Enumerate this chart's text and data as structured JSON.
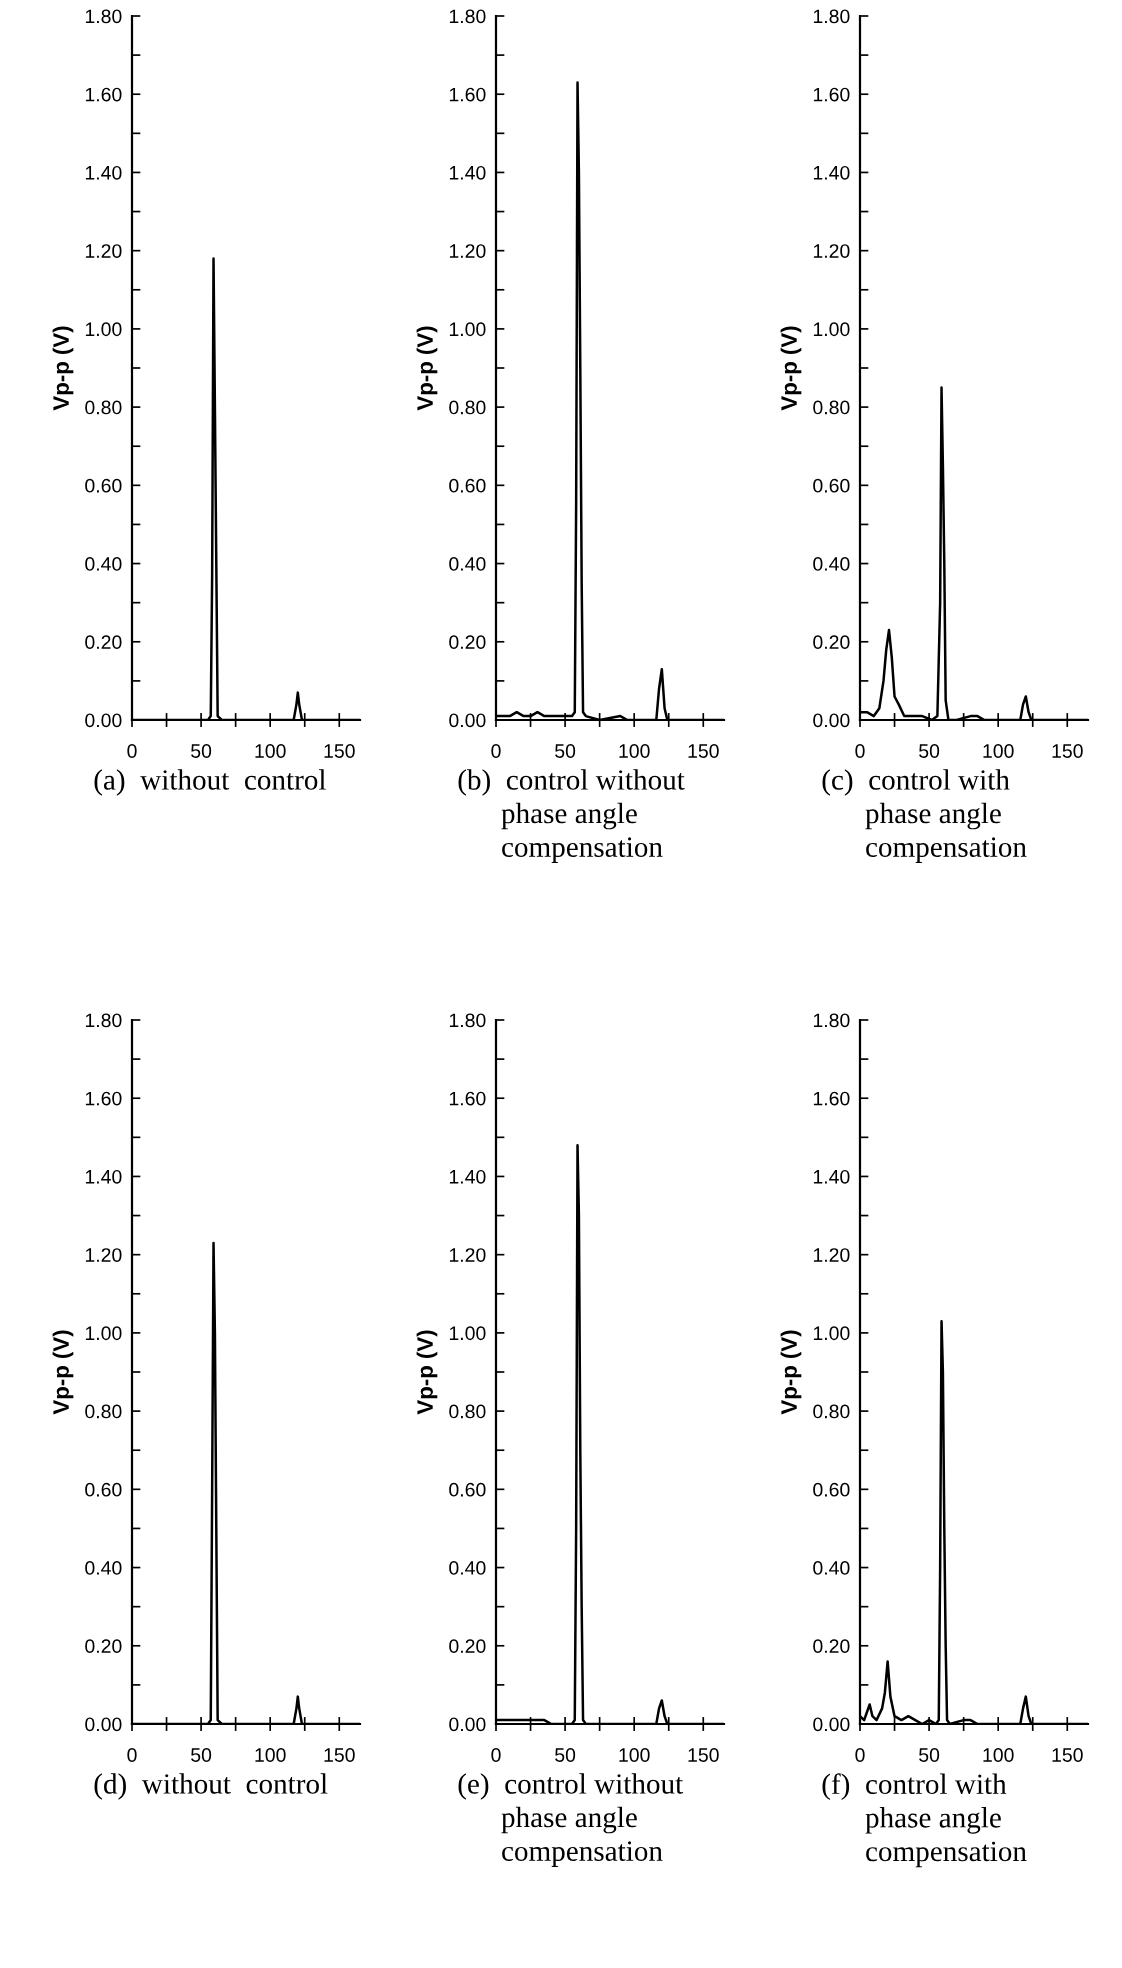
{
  "chart_data": [
    {
      "type": "line",
      "xlabel": "(a)  without  control",
      "ylabel": "Vp-p (V)",
      "xlim": [
        0,
        165
      ],
      "ylim": [
        0,
        1.8
      ],
      "xticks": [
        0,
        {
          "value": 25,
          "label": null
        },
        50,
        {
          "value": 75,
          "label": null
        },
        100,
        {
          "value": 125,
          "label": null
        },
        150
      ],
      "yticks": [
        {
          "value": 0,
          "label": "0.00"
        },
        {
          "value": 0.1,
          "label": null
        },
        {
          "value": 0.2,
          "label": "0.20"
        },
        {
          "value": 0.3,
          "label": null
        },
        {
          "value": 0.4,
          "label": "0.40"
        },
        {
          "value": 0.5,
          "label": null
        },
        {
          "value": 0.6,
          "label": "0.60"
        },
        {
          "value": 0.7,
          "label": null
        },
        {
          "value": 0.8,
          "label": "0.80"
        },
        {
          "value": 0.9,
          "label": null
        },
        {
          "value": 1.0,
          "label": "1.00"
        },
        {
          "value": 1.1,
          "label": null
        },
        {
          "value": 1.2,
          "label": "1.20"
        },
        {
          "value": 1.3,
          "label": null
        },
        {
          "value": 1.4,
          "label": "1.40"
        },
        {
          "value": 1.5,
          "label": null
        },
        {
          "value": 1.6,
          "label": "1.60"
        },
        {
          "value": 1.7,
          "label": null
        },
        {
          "value": 1.8,
          "label": "1.80"
        }
      ],
      "grid": false,
      "legend": false,
      "series": [
        {
          "color": "#000000",
          "x": [
            0,
            55,
            57,
            58,
            59,
            60,
            61,
            62,
            65,
            117,
            119,
            120,
            121,
            123,
            165
          ],
          "values": [
            0,
            0,
            0.01,
            0.37,
            1.18,
            0.8,
            0.4,
            0.01,
            0,
            0,
            0.04,
            0.07,
            0.04,
            0,
            0
          ]
        }
      ]
    },
    {
      "type": "line",
      "xlabel": "(b)  control without\n      phase angle\n      compensation",
      "ylabel": "Vp-p (V)",
      "xlim": [
        0,
        165
      ],
      "ylim": [
        0,
        1.8
      ],
      "xticks": [
        0,
        {
          "value": 25,
          "label": null
        },
        50,
        {
          "value": 75,
          "label": null
        },
        100,
        {
          "value": 125,
          "label": null
        },
        150
      ],
      "yticks": [
        {
          "value": 0,
          "label": "0.00"
        },
        {
          "value": 0.1,
          "label": null
        },
        {
          "value": 0.2,
          "label": "0.20"
        },
        {
          "value": 0.3,
          "label": null
        },
        {
          "value": 0.4,
          "label": "0.40"
        },
        {
          "value": 0.5,
          "label": null
        },
        {
          "value": 0.6,
          "label": "0.60"
        },
        {
          "value": 0.7,
          "label": null
        },
        {
          "value": 0.8,
          "label": "0.80"
        },
        {
          "value": 0.9,
          "label": null
        },
        {
          "value": 1.0,
          "label": "1.00"
        },
        {
          "value": 1.1,
          "label": null
        },
        {
          "value": 1.2,
          "label": "1.20"
        },
        {
          "value": 1.3,
          "label": null
        },
        {
          "value": 1.4,
          "label": "1.40"
        },
        {
          "value": 1.5,
          "label": null
        },
        {
          "value": 1.6,
          "label": "1.60"
        },
        {
          "value": 1.7,
          "label": null
        },
        {
          "value": 1.8,
          "label": "1.80"
        }
      ],
      "grid": false,
      "legend": false,
      "series": [
        {
          "color": "#000000",
          "x": [
            0,
            5,
            10,
            15,
            20,
            25,
            30,
            35,
            40,
            45,
            50,
            55,
            57,
            58,
            59,
            60,
            61,
            62,
            63,
            65,
            75,
            90,
            95,
            100,
            116,
            118,
            120,
            122,
            124,
            165
          ],
          "values": [
            0.01,
            0.01,
            0.01,
            0.02,
            0.01,
            0.01,
            0.02,
            0.01,
            0.01,
            0.01,
            0.01,
            0.01,
            0.02,
            0.55,
            1.63,
            1.4,
            0.9,
            0.35,
            0.02,
            0.01,
            0,
            0.01,
            0,
            0,
            0,
            0.08,
            0.13,
            0.03,
            0,
            0
          ]
        }
      ]
    },
    {
      "type": "line",
      "xlabel": "(c)  control with\n      phase angle\n      compensation",
      "ylabel": "Vp-p (V)",
      "xlim": [
        0,
        165
      ],
      "ylim": [
        0,
        1.8
      ],
      "xticks": [
        0,
        {
          "value": 25,
          "label": null
        },
        50,
        {
          "value": 75,
          "label": null
        },
        100,
        {
          "value": 125,
          "label": null
        },
        150
      ],
      "yticks": [
        {
          "value": 0,
          "label": "0.00"
        },
        {
          "value": 0.1,
          "label": null
        },
        {
          "value": 0.2,
          "label": "0.20"
        },
        {
          "value": 0.3,
          "label": null
        },
        {
          "value": 0.4,
          "label": "0.40"
        },
        {
          "value": 0.5,
          "label": null
        },
        {
          "value": 0.6,
          "label": "0.60"
        },
        {
          "value": 0.7,
          "label": null
        },
        {
          "value": 0.8,
          "label": "0.80"
        },
        {
          "value": 0.9,
          "label": null
        },
        {
          "value": 1.0,
          "label": "1.00"
        },
        {
          "value": 1.1,
          "label": null
        },
        {
          "value": 1.2,
          "label": "1.20"
        },
        {
          "value": 1.3,
          "label": null
        },
        {
          "value": 1.4,
          "label": "1.40"
        },
        {
          "value": 1.5,
          "label": null
        },
        {
          "value": 1.6,
          "label": "1.60"
        },
        {
          "value": 1.7,
          "label": null
        },
        {
          "value": 1.8,
          "label": "1.80"
        }
      ],
      "grid": false,
      "legend": false,
      "series": [
        {
          "color": "#000000",
          "x": [
            0,
            5,
            10,
            14,
            17,
            19,
            21,
            23,
            25,
            28,
            32,
            38,
            45,
            52,
            56,
            58,
            59,
            60,
            61,
            62,
            64,
            70,
            80,
            85,
            90,
            100,
            116,
            118,
            120,
            122,
            124,
            165
          ],
          "values": [
            0.02,
            0.02,
            0.01,
            0.03,
            0.1,
            0.18,
            0.23,
            0.16,
            0.06,
            0.04,
            0.01,
            0.01,
            0.01,
            0,
            0.01,
            0.3,
            0.85,
            0.65,
            0.4,
            0.05,
            0,
            0,
            0.01,
            0.01,
            0,
            0,
            0,
            0.04,
            0.06,
            0.02,
            0,
            0
          ]
        }
      ]
    },
    {
      "type": "line",
      "xlabel": "(d)  without  control",
      "ylabel": "Vp-p (V)",
      "xlim": [
        0,
        165
      ],
      "ylim": [
        0,
        1.8
      ],
      "xticks": [
        0,
        {
          "value": 25,
          "label": null
        },
        50,
        {
          "value": 75,
          "label": null
        },
        100,
        {
          "value": 125,
          "label": null
        },
        150
      ],
      "yticks": [
        {
          "value": 0,
          "label": "0.00"
        },
        {
          "value": 0.1,
          "label": null
        },
        {
          "value": 0.2,
          "label": "0.20"
        },
        {
          "value": 0.3,
          "label": null
        },
        {
          "value": 0.4,
          "label": "0.40"
        },
        {
          "value": 0.5,
          "label": null
        },
        {
          "value": 0.6,
          "label": "0.60"
        },
        {
          "value": 0.7,
          "label": null
        },
        {
          "value": 0.8,
          "label": "0.80"
        },
        {
          "value": 0.9,
          "label": null
        },
        {
          "value": 1.0,
          "label": "1.00"
        },
        {
          "value": 1.1,
          "label": null
        },
        {
          "value": 1.2,
          "label": "1.20"
        },
        {
          "value": 1.3,
          "label": null
        },
        {
          "value": 1.4,
          "label": "1.40"
        },
        {
          "value": 1.5,
          "label": null
        },
        {
          "value": 1.6,
          "label": "1.60"
        },
        {
          "value": 1.7,
          "label": null
        },
        {
          "value": 1.8,
          "label": "1.80"
        }
      ],
      "grid": false,
      "legend": false,
      "series": [
        {
          "color": "#000000",
          "x": [
            0,
            55,
            57,
            58,
            59,
            60,
            61,
            62,
            65,
            117,
            119,
            120,
            121,
            123,
            165
          ],
          "values": [
            0,
            0,
            0.01,
            0.6,
            1.23,
            1.0,
            0.5,
            0.01,
            0,
            0,
            0.04,
            0.07,
            0.04,
            0,
            0
          ]
        }
      ]
    },
    {
      "type": "line",
      "xlabel": "(e)  control without\n      phase angle\n      compensation",
      "ylabel": "Vp-p (V)",
      "xlim": [
        0,
        165
      ],
      "ylim": [
        0,
        1.8
      ],
      "xticks": [
        0,
        {
          "value": 25,
          "label": null
        },
        50,
        {
          "value": 75,
          "label": null
        },
        100,
        {
          "value": 125,
          "label": null
        },
        150
      ],
      "yticks": [
        {
          "value": 0,
          "label": "0.00"
        },
        {
          "value": 0.1,
          "label": null
        },
        {
          "value": 0.2,
          "label": "0.20"
        },
        {
          "value": 0.3,
          "label": null
        },
        {
          "value": 0.4,
          "label": "0.40"
        },
        {
          "value": 0.5,
          "label": null
        },
        {
          "value": 0.6,
          "label": "0.60"
        },
        {
          "value": 0.7,
          "label": null
        },
        {
          "value": 0.8,
          "label": "0.80"
        },
        {
          "value": 0.9,
          "label": null
        },
        {
          "value": 1.0,
          "label": "1.00"
        },
        {
          "value": 1.1,
          "label": null
        },
        {
          "value": 1.2,
          "label": "1.20"
        },
        {
          "value": 1.3,
          "label": null
        },
        {
          "value": 1.4,
          "label": "1.40"
        },
        {
          "value": 1.5,
          "label": null
        },
        {
          "value": 1.6,
          "label": "1.60"
        },
        {
          "value": 1.7,
          "label": null
        },
        {
          "value": 1.8,
          "label": "1.80"
        }
      ],
      "grid": false,
      "legend": false,
      "series": [
        {
          "color": "#000000",
          "x": [
            0,
            5,
            10,
            15,
            20,
            25,
            30,
            35,
            40,
            50,
            55,
            57,
            58,
            59,
            60,
            61,
            62,
            63,
            65,
            80,
            100,
            116,
            118,
            120,
            122,
            124,
            165
          ],
          "values": [
            0.01,
            0.01,
            0.01,
            0.01,
            0.01,
            0.01,
            0.01,
            0.01,
            0,
            0,
            0,
            0.01,
            0.5,
            1.48,
            1.3,
            0.7,
            0.3,
            0.01,
            0,
            0,
            0,
            0,
            0.04,
            0.06,
            0.02,
            0,
            0
          ]
        }
      ]
    },
    {
      "type": "line",
      "xlabel": "(f)  control with\n      phase angle\n      compensation",
      "ylabel": "Vp-p (V)",
      "xlim": [
        0,
        165
      ],
      "ylim": [
        0,
        1.8
      ],
      "xticks": [
        0,
        {
          "value": 25,
          "label": null
        },
        50,
        {
          "value": 75,
          "label": null
        },
        100,
        {
          "value": 125,
          "label": null
        },
        150
      ],
      "yticks": [
        {
          "value": 0,
          "label": "0.00"
        },
        {
          "value": 0.1,
          "label": null
        },
        {
          "value": 0.2,
          "label": "0.20"
        },
        {
          "value": 0.3,
          "label": null
        },
        {
          "value": 0.4,
          "label": "0.40"
        },
        {
          "value": 0.5,
          "label": null
        },
        {
          "value": 0.6,
          "label": "0.60"
        },
        {
          "value": 0.7,
          "label": null
        },
        {
          "value": 0.8,
          "label": "0.80"
        },
        {
          "value": 0.9,
          "label": null
        },
        {
          "value": 1.0,
          "label": "1.00"
        },
        {
          "value": 1.1,
          "label": null
        },
        {
          "value": 1.2,
          "label": "1.20"
        },
        {
          "value": 1.3,
          "label": null
        },
        {
          "value": 1.4,
          "label": "1.40"
        },
        {
          "value": 1.5,
          "label": null
        },
        {
          "value": 1.6,
          "label": "1.60"
        },
        {
          "value": 1.7,
          "label": null
        },
        {
          "value": 1.8,
          "label": "1.80"
        }
      ],
      "grid": false,
      "legend": false,
      "series": [
        {
          "color": "#000000",
          "x": [
            0,
            3,
            5,
            7,
            9,
            12,
            16,
            18,
            20,
            22,
            25,
            30,
            35,
            40,
            45,
            50,
            55,
            57,
            58,
            59,
            60,
            61,
            62,
            63,
            65,
            75,
            80,
            85,
            100,
            116,
            118,
            120,
            122,
            124,
            165
          ],
          "values": [
            0.02,
            0.01,
            0.03,
            0.05,
            0.02,
            0.01,
            0.04,
            0.08,
            0.16,
            0.07,
            0.02,
            0.01,
            0.02,
            0.01,
            0,
            0.01,
            0,
            0.01,
            0.4,
            1.03,
            0.9,
            0.5,
            0.2,
            0.01,
            0,
            0.01,
            0.01,
            0,
            0,
            0,
            0.04,
            0.07,
            0.02,
            0,
            0
          ]
        }
      ]
    }
  ]
}
